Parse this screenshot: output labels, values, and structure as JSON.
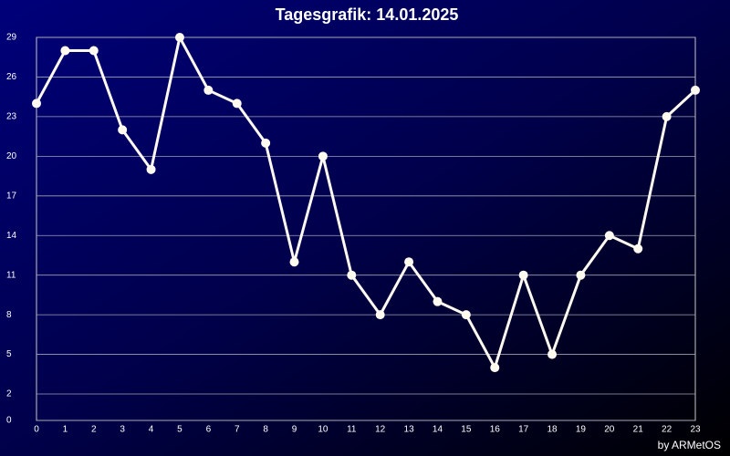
{
  "chart_data": {
    "type": "line",
    "title": "Tagesgrafik: 14.01.2025",
    "credit": "by ARMetOS",
    "x": [
      0,
      1,
      2,
      3,
      4,
      5,
      6,
      7,
      8,
      9,
      10,
      11,
      12,
      13,
      14,
      15,
      16,
      17,
      18,
      19,
      20,
      21,
      22,
      23
    ],
    "series": [
      {
        "name": null,
        "color": "#fffaf0",
        "values": [
          24,
          28,
          28,
          22,
          19,
          29,
          25,
          24,
          21,
          12,
          20,
          11,
          8,
          12,
          9,
          8,
          4,
          11,
          5,
          11,
          14,
          13,
          23,
          25
        ]
      }
    ],
    "xlim": [
      0,
      23
    ],
    "xticks": [
      0,
      1,
      2,
      3,
      4,
      5,
      6,
      7,
      8,
      9,
      10,
      11,
      12,
      13,
      14,
      15,
      16,
      17,
      18,
      19,
      20,
      21,
      22,
      23
    ],
    "ylim": [
      0,
      29
    ],
    "yticks": [
      0,
      2,
      5,
      8,
      11,
      14,
      17,
      20,
      23,
      26,
      29
    ],
    "grid": true
  }
}
